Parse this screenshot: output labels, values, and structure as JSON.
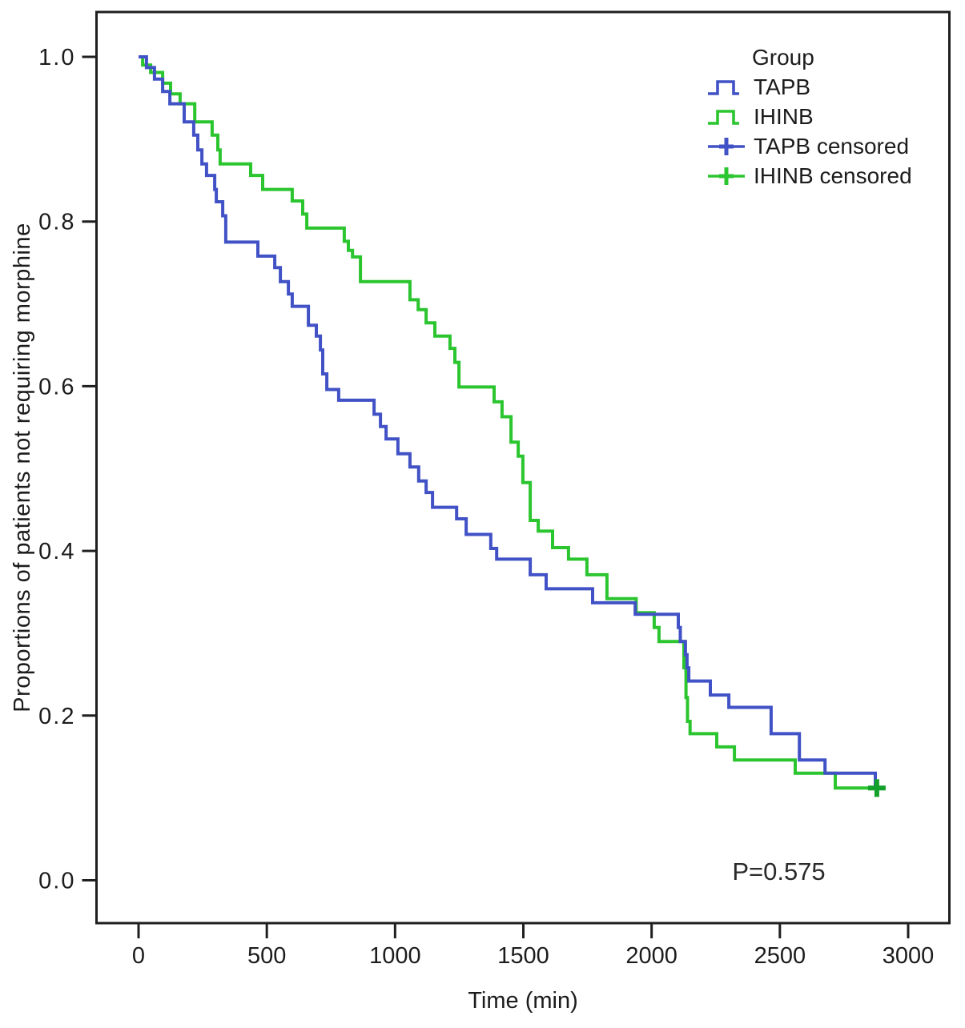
{
  "chart_data": {
    "type": "line",
    "subtype": "kaplan-meier-step",
    "title": "",
    "xlabel": "Time (min)",
    "ylabel": "Proportions of patients not requiring morphine",
    "x_ticks": [
      0,
      500,
      1000,
      1500,
      2000,
      2500,
      3000
    ],
    "y_ticks": [
      "0.0",
      "0.2",
      "0.4",
      "0.6",
      "0.8",
      "1.0"
    ],
    "xlim": [
      -165,
      3160
    ],
    "ylim": [
      -0.053,
      1.055
    ],
    "grid": false,
    "colors": {
      "tapb": "#4152c6",
      "ihinb": "#2bc52f",
      "censor_plus": "#14a12b",
      "axis": "#1f1f1f",
      "text": "#1c1c1c"
    },
    "legend": {
      "title": "Group",
      "position": "top-right",
      "entries": [
        {
          "label": "TAPB",
          "marker": "step",
          "color": "#4152c6"
        },
        {
          "label": "IHINB",
          "marker": "step",
          "color": "#2bc52f"
        },
        {
          "label": "TAPB censored",
          "marker": "plus",
          "color": "#4152c6"
        },
        {
          "label": "IHINB censored",
          "marker": "plus",
          "color": "#2bc52f"
        }
      ]
    },
    "annotation": {
      "text": "P=0.575"
    },
    "series": [
      {
        "name": "TAPB",
        "color": "#4152c6",
        "points": [
          [
            0,
            1.0
          ],
          [
            31,
            0.987
          ],
          [
            62,
            0.973
          ],
          [
            94,
            0.958
          ],
          [
            122,
            0.943
          ],
          [
            178,
            0.921
          ],
          [
            215,
            0.905
          ],
          [
            231,
            0.887
          ],
          [
            247,
            0.87
          ],
          [
            265,
            0.856
          ],
          [
            297,
            0.839
          ],
          [
            303,
            0.824
          ],
          [
            328,
            0.807
          ],
          [
            340,
            0.775
          ],
          [
            465,
            0.758
          ],
          [
            531,
            0.744
          ],
          [
            553,
            0.727
          ],
          [
            584,
            0.712
          ],
          [
            599,
            0.697
          ],
          [
            662,
            0.674
          ],
          [
            693,
            0.661
          ],
          [
            709,
            0.644
          ],
          [
            718,
            0.615
          ],
          [
            734,
            0.596
          ],
          [
            780,
            0.583
          ],
          [
            918,
            0.566
          ],
          [
            943,
            0.551
          ],
          [
            965,
            0.536
          ],
          [
            1011,
            0.518
          ],
          [
            1058,
            0.502
          ],
          [
            1092,
            0.485
          ],
          [
            1121,
            0.471
          ],
          [
            1146,
            0.453
          ],
          [
            1240,
            0.439
          ],
          [
            1277,
            0.42
          ],
          [
            1373,
            0.403
          ],
          [
            1396,
            0.39
          ],
          [
            1527,
            0.371
          ],
          [
            1589,
            0.354
          ],
          [
            1770,
            0.337
          ],
          [
            1936,
            0.323
          ],
          [
            2104,
            0.307
          ],
          [
            2112,
            0.29
          ],
          [
            2132,
            0.274
          ],
          [
            2138,
            0.258
          ],
          [
            2145,
            0.242
          ],
          [
            2229,
            0.225
          ],
          [
            2301,
            0.21
          ],
          [
            2466,
            0.178
          ],
          [
            2576,
            0.146
          ],
          [
            2676,
            0.13
          ],
          [
            2872,
            0.112
          ]
        ]
      },
      {
        "name": "IHINB",
        "color": "#2bc52f",
        "points": [
          [
            0,
            1.0
          ],
          [
            16,
            0.99
          ],
          [
            47,
            0.981
          ],
          [
            94,
            0.968
          ],
          [
            125,
            0.955
          ],
          [
            162,
            0.943
          ],
          [
            219,
            0.921
          ],
          [
            287,
            0.905
          ],
          [
            309,
            0.887
          ],
          [
            318,
            0.87
          ],
          [
            437,
            0.856
          ],
          [
            484,
            0.839
          ],
          [
            599,
            0.825
          ],
          [
            640,
            0.809
          ],
          [
            656,
            0.792
          ],
          [
            802,
            0.776
          ],
          [
            818,
            0.765
          ],
          [
            834,
            0.757
          ],
          [
            865,
            0.727
          ],
          [
            1058,
            0.705
          ],
          [
            1090,
            0.693
          ],
          [
            1121,
            0.677
          ],
          [
            1155,
            0.661
          ],
          [
            1214,
            0.646
          ],
          [
            1233,
            0.629
          ],
          [
            1249,
            0.599
          ],
          [
            1386,
            0.581
          ],
          [
            1417,
            0.563
          ],
          [
            1452,
            0.532
          ],
          [
            1480,
            0.515
          ],
          [
            1498,
            0.483
          ],
          [
            1527,
            0.437
          ],
          [
            1558,
            0.424
          ],
          [
            1614,
            0.404
          ],
          [
            1676,
            0.39
          ],
          [
            1748,
            0.371
          ],
          [
            1826,
            0.342
          ],
          [
            1940,
            0.325
          ],
          [
            2010,
            0.307
          ],
          [
            2029,
            0.29
          ],
          [
            2126,
            0.258
          ],
          [
            2134,
            0.222
          ],
          [
            2140,
            0.193
          ],
          [
            2150,
            0.178
          ],
          [
            2254,
            0.162
          ],
          [
            2323,
            0.146
          ],
          [
            2560,
            0.13
          ],
          [
            2716,
            0.112
          ],
          [
            2878,
            0.112
          ]
        ]
      }
    ],
    "censored": [
      {
        "series": "IHINB",
        "t": 2878,
        "p": 0.112
      }
    ]
  }
}
